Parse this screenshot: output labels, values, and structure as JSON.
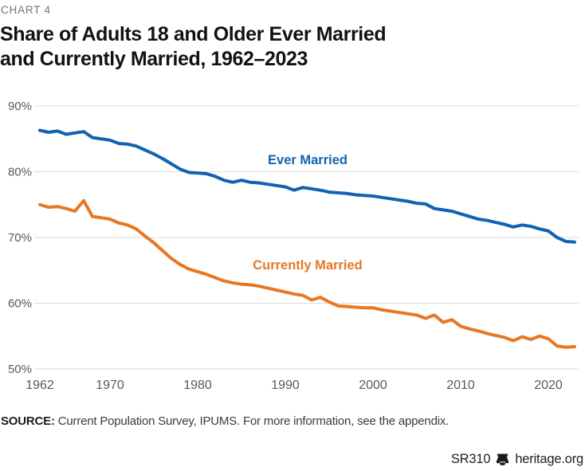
{
  "header": {
    "kicker": "CHART 4",
    "title_line1": "Share of Adults 18 and Older Ever Married",
    "title_line2": "and Currently Married, 1962–2023"
  },
  "footer": {
    "source_label": "SOURCE:",
    "source_text": " Current Population Survey, IPUMS. For more information, see the appendix.",
    "report_id": "SR310",
    "site": "heritage.org",
    "logo_icon": "liberty-bell-icon"
  },
  "colors": {
    "ever_married": "#1162B2",
    "currently_married": "#E87722",
    "grid": "#DBDBDB",
    "tick_text": "#58595B",
    "kicker_text": "#717377",
    "title_text": "#121212",
    "source_text": "#3B3B3B",
    "brand_text": "#232122"
  },
  "chart_data": {
    "type": "line",
    "title": "Share of Adults 18 and Older Ever Married and Currently Married, 1962–2023",
    "xlabel": "",
    "ylabel": "",
    "ylim": [
      50,
      90
    ],
    "yticks": [
      90,
      80,
      70,
      60,
      50
    ],
    "ytick_suffix": "%",
    "xticks": [
      1962,
      1970,
      1980,
      1990,
      2000,
      2010,
      2020
    ],
    "grid": "horizontal",
    "legend_position": "inline-labels",
    "x": [
      1962,
      1963,
      1964,
      1965,
      1966,
      1967,
      1968,
      1969,
      1970,
      1971,
      1972,
      1973,
      1974,
      1975,
      1976,
      1977,
      1978,
      1979,
      1980,
      1981,
      1982,
      1983,
      1984,
      1985,
      1986,
      1987,
      1988,
      1989,
      1990,
      1991,
      1992,
      1993,
      1994,
      1995,
      1996,
      1997,
      1998,
      1999,
      2000,
      2001,
      2002,
      2003,
      2004,
      2005,
      2006,
      2007,
      2008,
      2009,
      2010,
      2011,
      2012,
      2013,
      2014,
      2015,
      2016,
      2017,
      2018,
      2019,
      2020,
      2021,
      2022,
      2023
    ],
    "series": [
      {
        "name": "Ever Married",
        "color_key": "ever_married",
        "values": [
          86.3,
          86.0,
          86.2,
          85.7,
          85.9,
          86.1,
          85.2,
          85.0,
          84.8,
          84.3,
          84.2,
          83.9,
          83.3,
          82.7,
          82.0,
          81.2,
          80.4,
          79.9,
          79.8,
          79.7,
          79.3,
          78.7,
          78.4,
          78.7,
          78.4,
          78.3,
          78.1,
          77.9,
          77.7,
          77.2,
          77.6,
          77.4,
          77.2,
          76.9,
          76.8,
          76.7,
          76.5,
          76.4,
          76.3,
          76.1,
          75.9,
          75.7,
          75.5,
          75.2,
          75.1,
          74.4,
          74.2,
          74.0,
          73.6,
          73.2,
          72.8,
          72.6,
          72.3,
          72.0,
          71.6,
          71.9,
          71.7,
          71.3,
          71.0,
          70.0,
          69.4,
          69.3
        ]
      },
      {
        "name": "Currently Married",
        "color_key": "currently_married",
        "values": [
          75.0,
          74.6,
          74.7,
          74.4,
          74.0,
          75.6,
          73.2,
          73.0,
          72.8,
          72.2,
          71.9,
          71.3,
          70.2,
          69.2,
          68.0,
          66.8,
          65.9,
          65.2,
          64.8,
          64.4,
          63.9,
          63.4,
          63.1,
          62.9,
          62.8,
          62.6,
          62.3,
          62.0,
          61.7,
          61.4,
          61.2,
          60.5,
          60.9,
          60.2,
          59.6,
          59.5,
          59.4,
          59.3,
          59.3,
          59.0,
          58.8,
          58.6,
          58.4,
          58.2,
          57.7,
          58.2,
          57.1,
          57.5,
          56.5,
          56.1,
          55.8,
          55.4,
          55.1,
          54.8,
          54.3,
          54.9,
          54.5,
          55.0,
          54.6,
          53.5,
          53.3,
          53.4
        ]
      }
    ]
  }
}
